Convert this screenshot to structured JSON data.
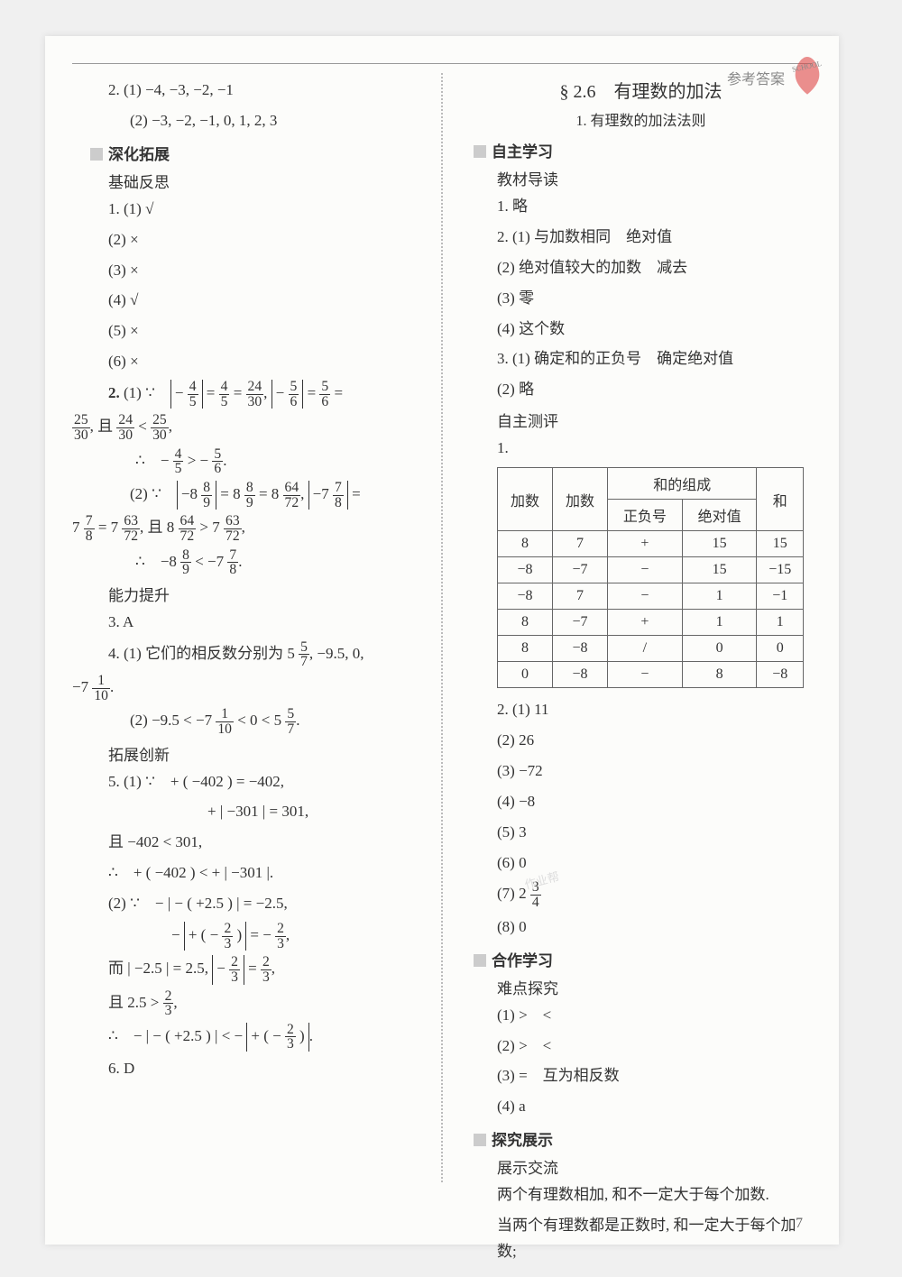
{
  "header": {
    "label": "参考答案",
    "badge": "SCHOOL"
  },
  "left": {
    "q2_1": "2. (1) −4, −3, −2, −1",
    "q2_2": "(2) −3, −2, −1, 0, 1, 2, 3",
    "sec1": "深化拓展",
    "sub1": "基础反思",
    "l1": "1. (1) √",
    "l2": "(2) ×",
    "l3": "(3) ×",
    "l4": "(4) √",
    "l5": "(5) ×",
    "l6": "(6) ×",
    "sub2": "能力提升",
    "l3a": "3. A",
    "q4_txt": "4. (1) 它们的相反数分别为",
    "sub3": "拓展创新",
    "q5a": "5. (1) ∵　+ ( −402 ) = −402,",
    "q5b": "+ | −301 | = 301,",
    "q5c": "且 −402 < 301,",
    "q5d": "∴　+ ( −402 ) < + | −301 |.",
    "q5e": "(2) ∵　− | − ( +2.5 ) | = −2.5,",
    "q5j": "∴　− | − ( +2.5 ) | < −",
    "l6d": "6. D"
  },
  "right": {
    "title": "§ 2.6　有理数的加法",
    "subtitle": "1. 有理数的加法法则",
    "sec1": "自主学习",
    "sub1": "教材导读",
    "r1": "1. 略",
    "r2": "2. (1) 与加数相同　绝对值",
    "r3": "(2) 绝对值较大的加数　减去",
    "r4": "(3) 零",
    "r5": "(4) 这个数",
    "r6": "3. (1) 确定和的正负号　确定绝对值",
    "r7": "(2) 略",
    "sub2": "自主测评",
    "r1b": "1.",
    "r2_1": "2. (1) 11",
    "r2_2": "(2) 26",
    "r2_3": "(3) −72",
    "r2_4": "(4) −8",
    "r2_5": "(5) 3",
    "r2_6": "(6) 0",
    "r2_7": "(7) 2",
    "r2_8": "(8) 0",
    "sec2": "合作学习",
    "sub3": "难点探究",
    "rd1": "(1) >　<",
    "rd2": "(2) >　<",
    "rd3": "(3) =　互为相反数",
    "rd4": "(4) a",
    "sec3": "探究展示",
    "sub4": "展示交流",
    "p1": "两个有理数相加, 和不一定大于每个加数.",
    "p2": "当两个有理数都是正数时, 和一定大于每个加数;"
  },
  "table": {
    "h1": "加数",
    "h2": "加数",
    "h3": "和的组成",
    "h4": "和",
    "h3a": "正负号",
    "h3b": "绝对值",
    "rows": [
      [
        "8",
        "7",
        "+",
        "15",
        "15"
      ],
      [
        "−8",
        "−7",
        "−",
        "15",
        "−15"
      ],
      [
        "−8",
        "7",
        "−",
        "1",
        "−1"
      ],
      [
        "8",
        "−7",
        "+",
        "1",
        "1"
      ],
      [
        "8",
        "−8",
        "/",
        "0",
        "0"
      ],
      [
        "0",
        "−8",
        "−",
        "8",
        "−8"
      ]
    ]
  },
  "page_num": "7"
}
